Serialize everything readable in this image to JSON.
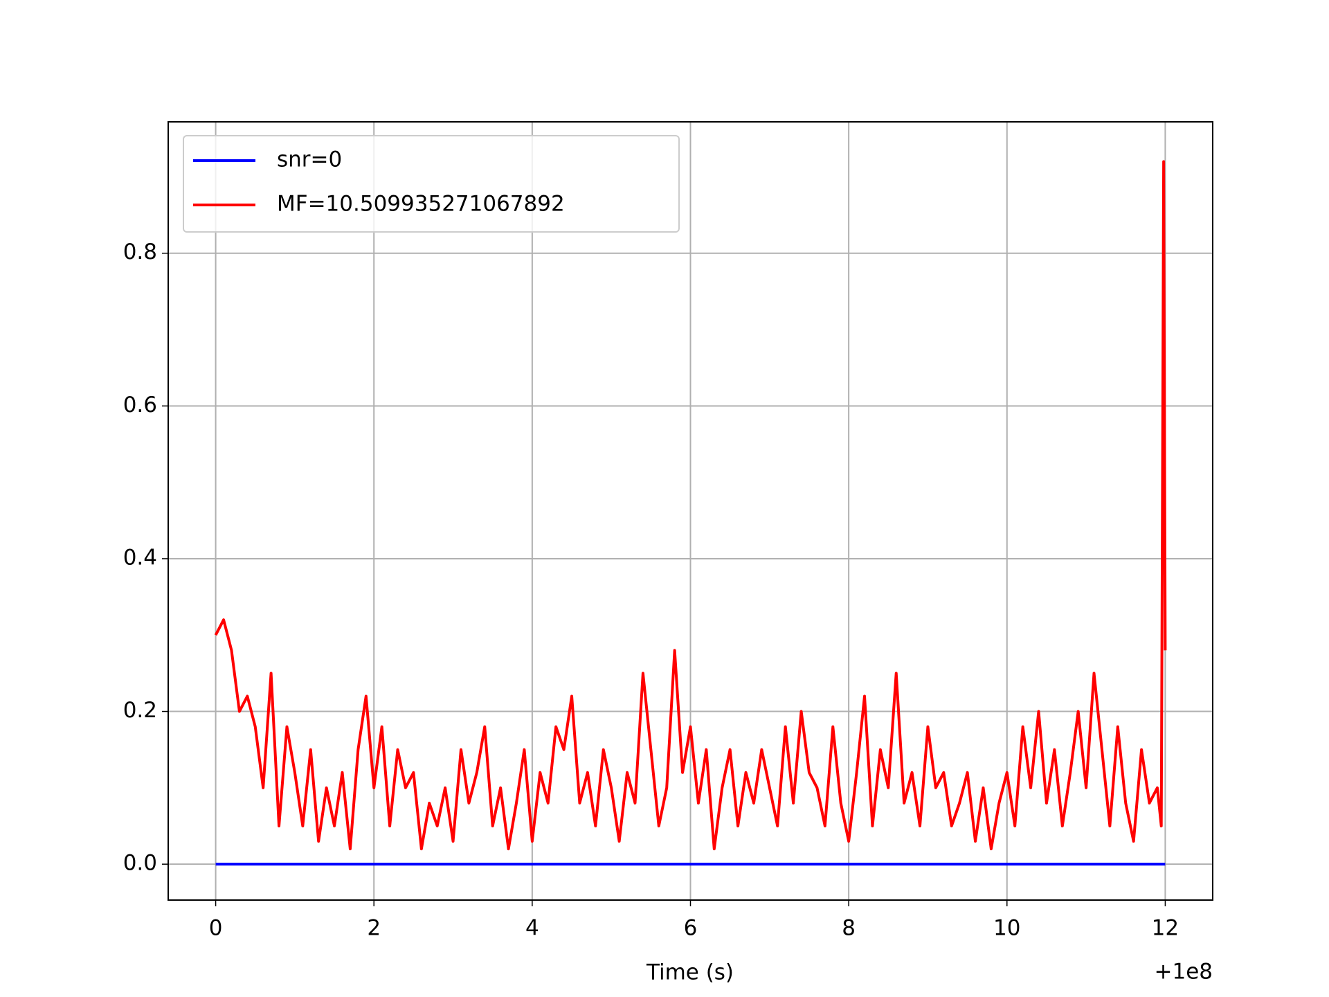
{
  "chart_data": {
    "type": "line",
    "x_label": "Time (s)",
    "x_offset_label": "+1e8",
    "xlim": [
      -0.6,
      12.6
    ],
    "xticks": [
      0,
      2,
      4,
      6,
      8,
      10,
      12
    ],
    "ylim": [
      -0.047,
      0.972
    ],
    "yticks": [
      {
        "value": 0,
        "label": "0.0"
      },
      {
        "value": 0.2,
        "label": "0.2"
      },
      {
        "value": 0.4,
        "label": "0.4"
      },
      {
        "value": 0.6,
        "label": "0.6"
      },
      {
        "value": 0.8,
        "label": "0.8"
      }
    ],
    "grid": true,
    "legend": "upper left",
    "series": [
      {
        "name": "snr=0",
        "color": "#0000ff",
        "x": [
          0,
          12
        ],
        "values": [
          0,
          0
        ]
      },
      {
        "name": "MF=10.509935271067892",
        "color": "#ff0000",
        "x": [
          0,
          0.1,
          0.2,
          0.3,
          0.4,
          0.5,
          0.6,
          0.7,
          0.8,
          0.9,
          1,
          1.1,
          1.2,
          1.3,
          1.4,
          1.5,
          1.6,
          1.7,
          1.8,
          1.9,
          2,
          2.1,
          2.2,
          2.3,
          2.4,
          2.5,
          2.6,
          2.7,
          2.8,
          2.9,
          3,
          3.1,
          3.2,
          3.3,
          3.4,
          3.5,
          3.6,
          3.7,
          3.8,
          3.9,
          4,
          4.1,
          4.2,
          4.3,
          4.4,
          4.5,
          4.6,
          4.7,
          4.8,
          4.9,
          5,
          5.1,
          5.2,
          5.3,
          5.4,
          5.5,
          5.6,
          5.7,
          5.8,
          5.9,
          6,
          6.1,
          6.2,
          6.3,
          6.4,
          6.5,
          6.6,
          6.7,
          6.8,
          6.9,
          7,
          7.1,
          7.2,
          7.3,
          7.4,
          7.5,
          7.6,
          7.7,
          7.8,
          7.9,
          8,
          8.1,
          8.2,
          8.3,
          8.4,
          8.5,
          8.6,
          8.7,
          8.8,
          8.9,
          9,
          9.1,
          9.2,
          9.3,
          9.4,
          9.5,
          9.6,
          9.7,
          9.8,
          9.9,
          10,
          10.1,
          10.2,
          10.3,
          10.4,
          10.5,
          10.6,
          10.7,
          10.8,
          10.9,
          11,
          11.1,
          11.2,
          11.3,
          11.4,
          11.5,
          11.6,
          11.7,
          11.8,
          11.9,
          11.95,
          11.98,
          12
        ],
        "values": [
          0.3,
          0.32,
          0.28,
          0.2,
          0.22,
          0.18,
          0.1,
          0.25,
          0.05,
          0.18,
          0.12,
          0.05,
          0.15,
          0.03,
          0.1,
          0.05,
          0.12,
          0.02,
          0.15,
          0.22,
          0.1,
          0.18,
          0.05,
          0.15,
          0.1,
          0.12,
          0.02,
          0.08,
          0.05,
          0.1,
          0.03,
          0.15,
          0.08,
          0.12,
          0.18,
          0.05,
          0.1,
          0.02,
          0.08,
          0.15,
          0.03,
          0.12,
          0.08,
          0.18,
          0.15,
          0.22,
          0.08,
          0.12,
          0.05,
          0.15,
          0.1,
          0.03,
          0.12,
          0.08,
          0.25,
          0.15,
          0.05,
          0.1,
          0.28,
          0.12,
          0.18,
          0.08,
          0.15,
          0.02,
          0.1,
          0.15,
          0.05,
          0.12,
          0.08,
          0.15,
          0.1,
          0.05,
          0.18,
          0.08,
          0.2,
          0.12,
          0.1,
          0.05,
          0.18,
          0.08,
          0.03,
          0.12,
          0.22,
          0.05,
          0.15,
          0.1,
          0.25,
          0.08,
          0.12,
          0.05,
          0.18,
          0.1,
          0.12,
          0.05,
          0.08,
          0.12,
          0.03,
          0.1,
          0.02,
          0.08,
          0.12,
          0.05,
          0.18,
          0.1,
          0.2,
          0.08,
          0.15,
          0.05,
          0.12,
          0.2,
          0.1,
          0.25,
          0.15,
          0.05,
          0.18,
          0.08,
          0.03,
          0.15,
          0.08,
          0.1,
          0.05,
          0.92,
          0.28
        ]
      }
    ]
  }
}
